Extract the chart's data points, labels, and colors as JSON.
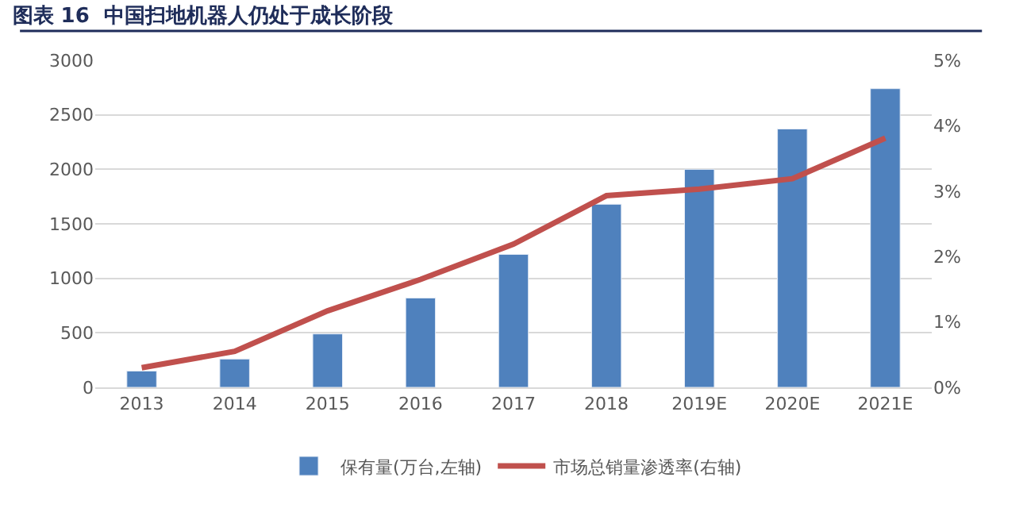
{
  "chart_data": {
    "type": "bar",
    "title": "图表 16  中国扫地机器人仍处于成长阶段",
    "categories": [
      "2013",
      "2014",
      "2015",
      "2016",
      "2017",
      "2018",
      "2019E",
      "2020E",
      "2021E"
    ],
    "series": [
      {
        "name": "保有量(万台,左轴)",
        "color": "#4f81bd",
        "values": [
          150,
          260,
          490,
          820,
          1220,
          1680,
          2000,
          2370,
          2740
        ]
      },
      {
        "name": "市场总销量渗透率(右轴)",
        "color": "#c0504d",
        "type": "line",
        "axis": "y2",
        "values": [
          0.3,
          0.55,
          1.17,
          1.65,
          2.19,
          2.93,
          3.03,
          3.19,
          3.81
        ]
      }
    ],
    "ylim": [
      0,
      3000
    ],
    "yticks": [
      0,
      500,
      1000,
      1500,
      2000,
      2500,
      3000
    ],
    "y2lim": [
      0,
      5
    ],
    "y2ticks": [
      {
        "value": 0,
        "label": "0%"
      },
      {
        "value": 1,
        "label": "1%"
      },
      {
        "value": 2,
        "label": "2%"
      },
      {
        "value": 3,
        "label": "3%"
      },
      {
        "value": 4,
        "label": "4%"
      },
      {
        "value": 5,
        "label": "5%"
      }
    ],
    "grid": "y",
    "legend": "bottom",
    "marker": "none",
    "line_style": "solid"
  }
}
